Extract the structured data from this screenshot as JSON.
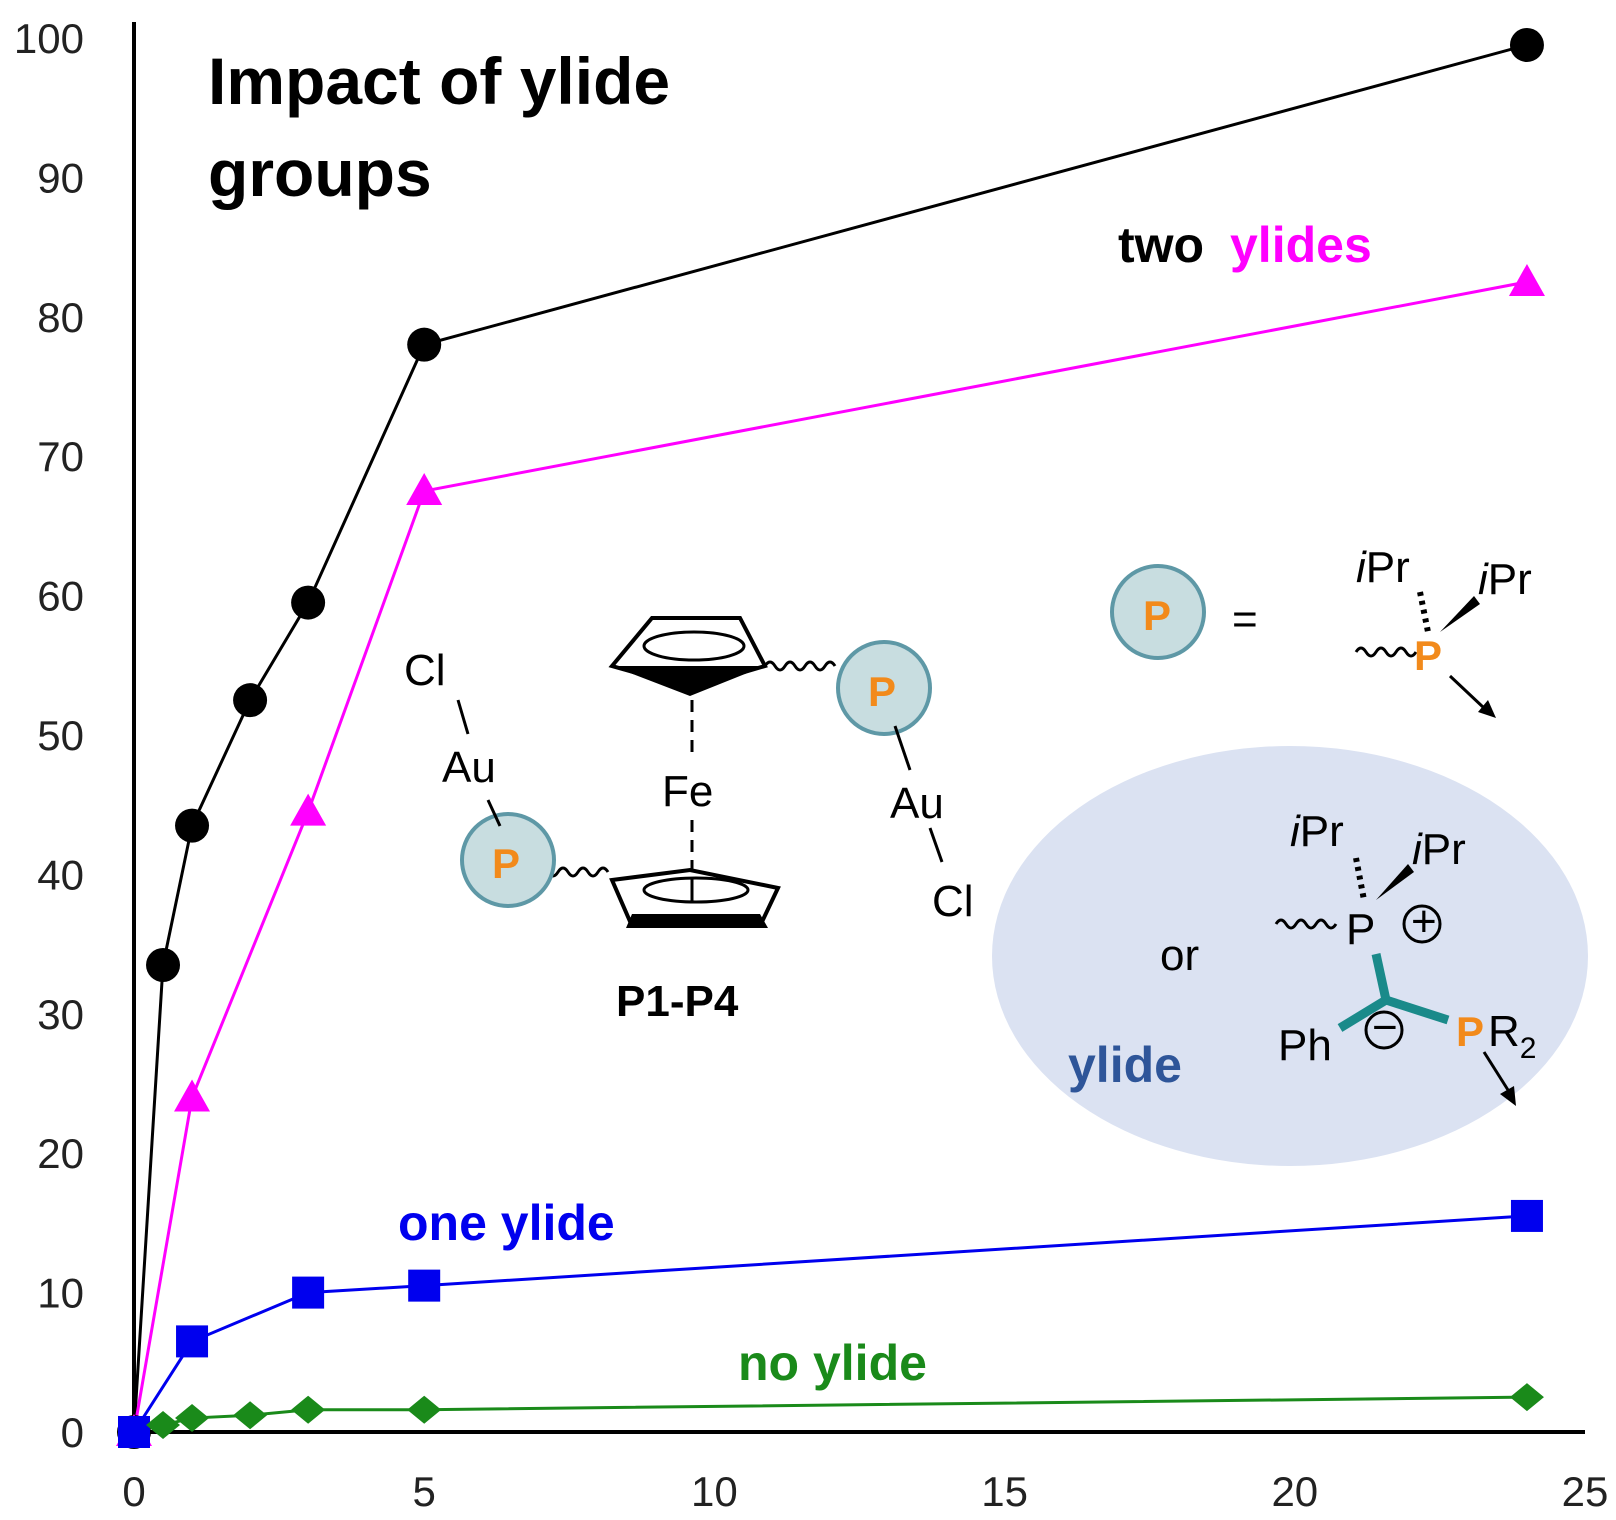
{
  "chart_data": {
    "type": "line",
    "title": "Impact of ylide groups",
    "title_lines": [
      "Impact of ylide",
      "groups"
    ],
    "xlabel": "",
    "ylabel": "",
    "xlim": [
      0,
      25
    ],
    "ylim": [
      0,
      100
    ],
    "x_ticks": [
      "0",
      "5",
      "10",
      "15",
      "20",
      "25"
    ],
    "y_ticks": [
      "0",
      "10",
      "20",
      "30",
      "40",
      "50",
      "60",
      "70",
      "80",
      "90",
      "100"
    ],
    "grid": false,
    "series": [
      {
        "label_parts": [
          "two",
          "ylides"
        ],
        "marker": "circle",
        "color": "#000000",
        "x": [
          0,
          0.5,
          1,
          2,
          3,
          5,
          24
        ],
        "y": [
          0,
          33.5,
          43.5,
          52.5,
          59.5,
          78,
          99.5
        ]
      },
      {
        "label_parts": [
          "two",
          "ylides"
        ],
        "marker": "triangle",
        "color": "#ff00ff",
        "x": [
          0,
          1,
          3,
          5,
          24
        ],
        "y": [
          0,
          24,
          44.5,
          67.5,
          82.5
        ]
      },
      {
        "name": "one ylide",
        "marker": "square",
        "color": "#0000ee",
        "x": [
          0,
          1,
          3,
          5,
          24
        ],
        "y": [
          0,
          6.5,
          10,
          10.5,
          15.5
        ]
      },
      {
        "name": "no ylide",
        "marker": "diamond",
        "color": "#1a8a1a",
        "x": [
          0.5,
          1,
          2,
          3,
          5,
          24
        ],
        "y": [
          0.5,
          1,
          1.2,
          1.6,
          1.6,
          2.5
        ]
      }
    ],
    "series_labels": {
      "two_word": "two",
      "ylides_word": "ylides",
      "one_ylide": "one ylide",
      "no_ylide": "no ylide"
    }
  },
  "scheme": {
    "compound_label": "P1-P4",
    "fe": "Fe",
    "au": "Au",
    "cl": "Cl",
    "p": "P",
    "equals": "=",
    "ipr": "Pr",
    "i": "i",
    "or": "or",
    "ylide": "ylide",
    "ph": "Ph",
    "r": "R",
    "sub2": "2",
    "plus": "+",
    "minus": "−"
  },
  "colors": {
    "two_ylides": "#000000",
    "ylides_word": "#ff00ff",
    "one_ylide": "#0000ee",
    "no_ylide": "#1a8a1a",
    "phosphorus": "#f28a1b",
    "p_circle_fill": "#c8dde0",
    "p_circle_stroke": "#5e98a6",
    "ylide_ellipse": "#dbe2f2",
    "ylide_text": "#2e5599",
    "ylide_bond": "#1a8a8a"
  }
}
